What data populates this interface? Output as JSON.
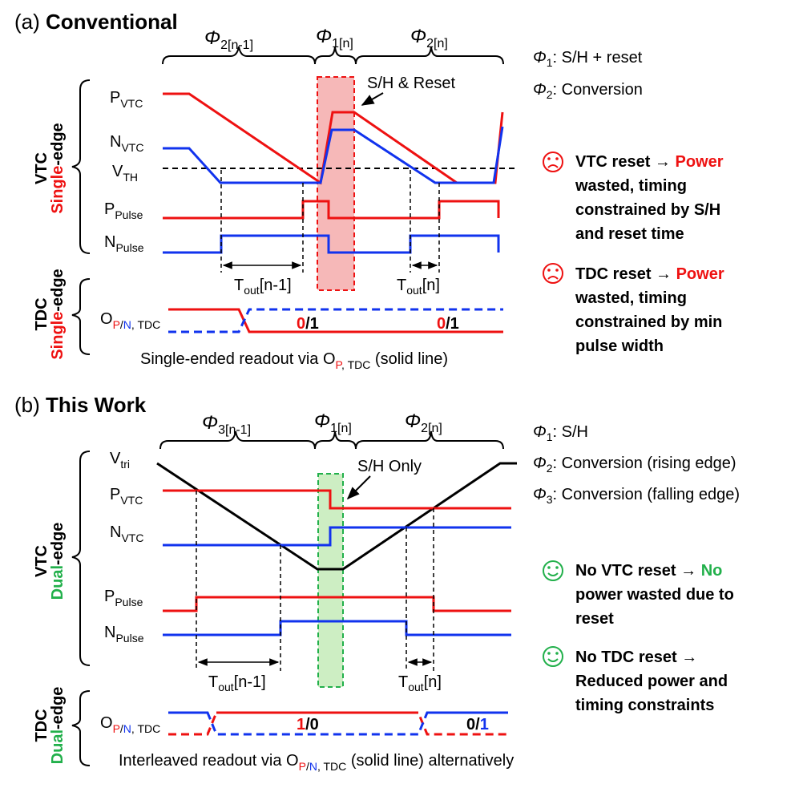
{
  "colors": {
    "red": "#ee1111",
    "blue": "#1133ee",
    "green": "#22b04b",
    "black": "#000000"
  },
  "sectionA": {
    "prefix": "(a) ",
    "title": "Conventional",
    "phase_prev": "2[n-1]",
    "phase_cur1": "1[n]",
    "phase_cur2": "2[n]",
    "phase_sym": "Φ",
    "legend1_sub": "1",
    "legend1_text": ": S/H + reset",
    "legend2_sub": "2",
    "legend2_text": ": Conversion",
    "box_label": "S/H & Reset",
    "vtc_label_color": "Single",
    "vtc_label_rest": "-edge",
    "vtc_label_2": "VTC",
    "tdc_label_color": "Single",
    "tdc_label_rest": "-edge",
    "tdc_label_2": "TDC",
    "signals": {
      "p_vtc": {
        "main": "P",
        "sub": "VTC"
      },
      "n_vtc": {
        "main": "N",
        "sub": "VTC"
      },
      "v_th": {
        "main": "V",
        "sub": "TH"
      },
      "p_pulse": {
        "main": "P",
        "sub": "Pulse"
      },
      "n_pulse": {
        "main": "N",
        "sub": "Pulse"
      }
    },
    "tout1": {
      "main": "T",
      "sub": "out",
      "rest": "[n-1]"
    },
    "tout2": {
      "main": "T",
      "sub": "out",
      "rest": "[n]"
    },
    "o_label": {
      "main": "O",
      "sub_p": "P",
      "sub_slash": "/",
      "sub_n": "N",
      "sub_rest": ", TDC"
    },
    "bit1": {
      "a": "0",
      "b": "/1"
    },
    "bit2": {
      "a": "0",
      "b": "/1"
    },
    "readout": {
      "text": "Single-ended readout via O",
      "sub_p": "P",
      "sub_rest": ", TDC",
      "end": " (solid line)"
    },
    "note1": {
      "lead": "VTC reset → ",
      "line1": "Power",
      "line2": "wasted, timing",
      "line3": "constrained by S/H",
      "line4": "and reset time"
    },
    "note2": {
      "lead": "TDC reset → ",
      "line1": "Power",
      "line2": "wasted, timing",
      "line3": "constrained by min",
      "line4": "pulse width"
    }
  },
  "sectionB": {
    "prefix": "(b) ",
    "title": "This Work",
    "phase_prev": "3[n-1]",
    "phase_cur1": "1[n]",
    "phase_cur2": "2[n]",
    "phase_sym": "Φ",
    "legend1_sub": "1",
    "legend1_text": ": S/H",
    "legend2_sub": "2",
    "legend2_text": ": Conversion (rising edge)",
    "legend3_sub": "3",
    "legend3_text": ": Conversion (falling edge)",
    "box_label": "S/H Only",
    "vtc_label_color": "Dual",
    "vtc_label_rest": "-edge",
    "vtc_label_2": "VTC",
    "tdc_label_color": "Dual",
    "tdc_label_rest": "-edge",
    "tdc_label_2": "TDC",
    "signals": {
      "v_tri": {
        "main": "V",
        "sub": "tri"
      },
      "p_vtc": {
        "main": "P",
        "sub": "VTC"
      },
      "n_vtc": {
        "main": "N",
        "sub": "VTC"
      },
      "p_pulse": {
        "main": "P",
        "sub": "Pulse"
      },
      "n_pulse": {
        "main": "N",
        "sub": "Pulse"
      }
    },
    "tout1": {
      "main": "T",
      "sub": "out",
      "rest": "[n-1]"
    },
    "tout2": {
      "main": "T",
      "sub": "out",
      "rest": "[n]"
    },
    "o_label": {
      "main": "O",
      "sub_p": "P",
      "sub_slash": "/",
      "sub_n": "N",
      "sub_rest": ", TDC"
    },
    "bit1": {
      "a": "1",
      "b": "/0"
    },
    "bit2": {
      "a": "0",
      "b": "/",
      "c": "1"
    },
    "readout": {
      "text": "Interleaved readout via O",
      "sub_p": "P",
      "sub_slash": "/",
      "sub_n": "N",
      "sub_rest": ", TDC",
      "end": " (solid line) alternatively"
    },
    "note1": {
      "lead": "No VTC reset → ",
      "line1": "No",
      "line2": "power wasted due to",
      "line3": "reset"
    },
    "note2": {
      "lead": "No TDC reset →",
      "line1": "Reduced power and",
      "line2": "timing constraints"
    }
  }
}
